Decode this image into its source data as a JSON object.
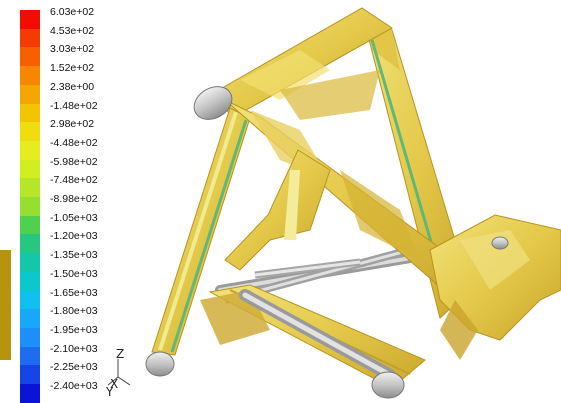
{
  "legend": {
    "labels": [
      "6.03e+02",
      "4.53e+02",
      "3.03e+02",
      "1.52e+02",
      "2.38e+00",
      "-1.48e+02",
      "2.98e+02",
      "-4.48e+02",
      "-5.98e+02",
      "-7.48e+02",
      "-8.98e+02",
      "-1.05e+03",
      "-1.20e+03",
      "-1.35e+03",
      "-1.50e+03",
      "-1.65e+03",
      "-1.80e+03",
      "-1.95e+03",
      "-2.10e+03",
      "-2.25e+03",
      "-2.40e+03"
    ],
    "colors": [
      "#f20d00",
      "#f53b00",
      "#f76000",
      "#f88600",
      "#f6a600",
      "#f3c400",
      "#f0dd10",
      "#e6ec20",
      "#d0ee20",
      "#b6e628",
      "#96de30",
      "#50d050",
      "#24c880",
      "#12c8a8",
      "#0ac8cc",
      "#10c0ee",
      "#18a8f8",
      "#1e8ef8",
      "#1e6cf0",
      "#1644e6",
      "#0a14d8"
    ]
  },
  "axes": {
    "z": "Z",
    "x": "X",
    "y": "Y"
  }
}
